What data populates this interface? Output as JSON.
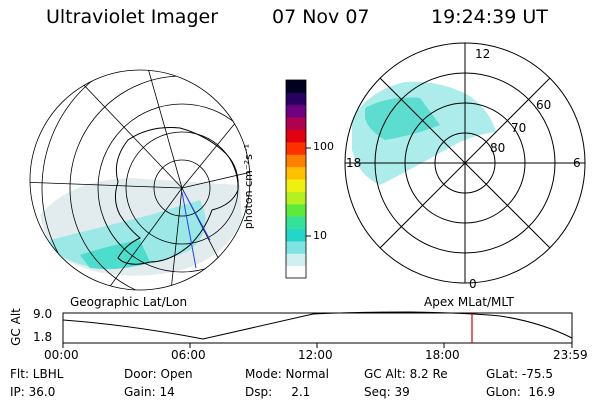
{
  "header": {
    "instrument": "Ultraviolet Imager",
    "date": "07 Nov 07",
    "time": "19:24:39 UT"
  },
  "left_panel": {
    "caption": "Geographic Lat/Lon"
  },
  "right_panel": {
    "caption": "Apex MLat/MLT",
    "mlt_labels": [
      "12",
      "18",
      "6",
      "0"
    ],
    "lat_labels": [
      "60",
      "70",
      "80"
    ]
  },
  "colorbar": {
    "unit_label": "photon cm⁻²s⁻¹",
    "tick_labels": [
      "100",
      "10"
    ],
    "colors": [
      "#ffffff",
      "#cfeff0",
      "#7fe3e3",
      "#22d6c8",
      "#35e09a",
      "#5eea3c",
      "#b6f020",
      "#f0f010",
      "#ffc000",
      "#ff8000",
      "#ff3000",
      "#e00010",
      "#b00050",
      "#700080",
      "#2a0060",
      "#000020"
    ]
  },
  "altitude_plot": {
    "ylabel": "GC Alt",
    "y_ticks": [
      "9.0",
      "1.8"
    ],
    "x_ticks": [
      "00:00",
      "06:00",
      "12:00",
      "18:00",
      "23:59"
    ],
    "marker_color": "#dd0000"
  },
  "footer": {
    "col1": [
      "Flt: LBHL",
      "IP: 36.0"
    ],
    "col2": [
      "Door: Open",
      "Gain: 14"
    ],
    "col3": [
      "Mode: Normal",
      "Dsp:     2.1"
    ],
    "col4": [
      "GC Alt: 8.2 Re",
      "Seq: 39"
    ],
    "col5": [
      "GLat: -75.5",
      "GLon:  16.9"
    ]
  }
}
